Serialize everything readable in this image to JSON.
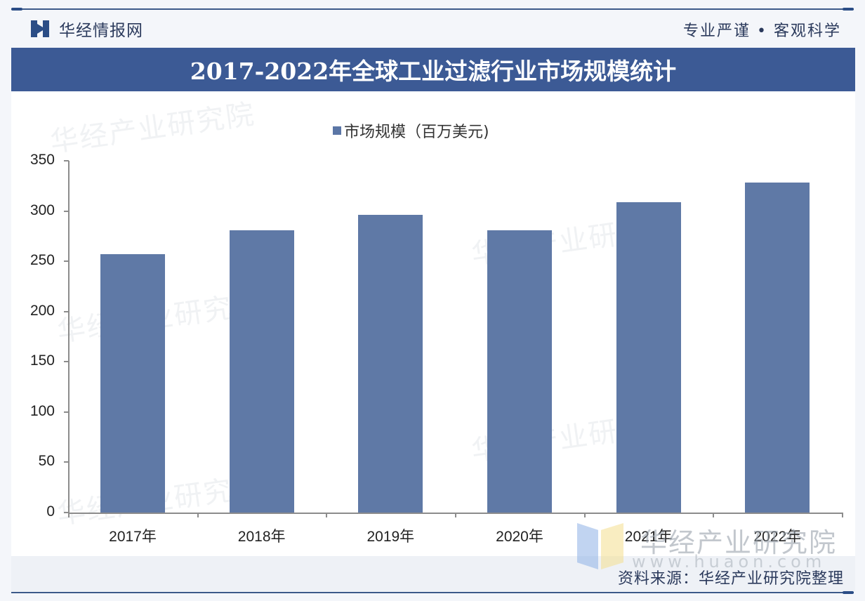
{
  "header": {
    "brand_name": "华经情报网",
    "slogan": "专业严谨 • 客观科学",
    "title": "2017-2022年全球工业过滤行业市场规模统计"
  },
  "legend": {
    "label": "市场规模（百万美元)",
    "color": "#5f79a6"
  },
  "footer": {
    "source": "资料来源：华经产业研究院整理",
    "watermark_text": "华经产业研究院",
    "watermark_url": "www.huaon.com"
  },
  "watermarks": [
    "华经产业研究院",
    "华经产业研究院",
    "华经产业研究院",
    "华经产业研究院"
  ],
  "colors": {
    "title_bar": "#3c5a95",
    "bar": "#5f79a6",
    "brand": "#2b4d86"
  },
  "chart_data": {
    "type": "bar",
    "title": "2017-2022年全球工业过滤行业市场规模统计",
    "categories": [
      "2017年",
      "2018年",
      "2019年",
      "2020年",
      "2021年",
      "2022年"
    ],
    "series": [
      {
        "name": "市场规模（百万美元)",
        "values": [
          257,
          281,
          296,
          281,
          309,
          328
        ]
      }
    ],
    "xlabel": "",
    "ylabel": "",
    "ylim": [
      0,
      350
    ],
    "yticks": [
      0,
      50,
      100,
      150,
      200,
      250,
      300,
      350
    ],
    "grid": false,
    "legend_position": "top"
  }
}
